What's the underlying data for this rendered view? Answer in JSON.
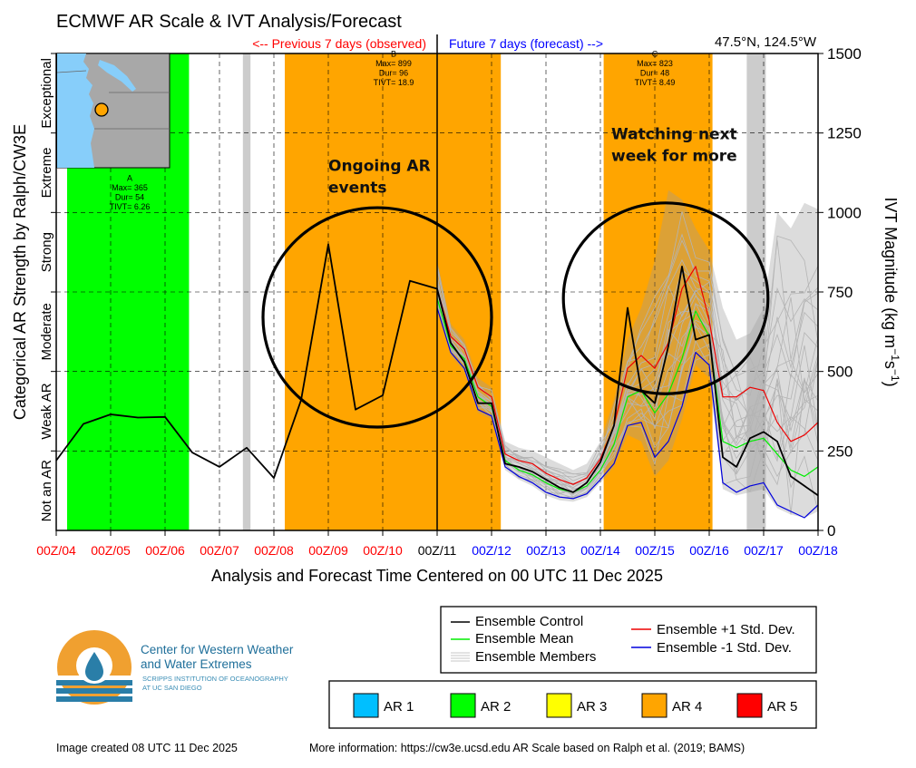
{
  "title": "ECMWF AR Scale & IVT Analysis/Forecast",
  "location": "47.5°N, 124.5°W",
  "previous_label": "<-- Previous 7 days (observed)",
  "future_label": "Future 7 days (forecast) -->",
  "colors": {
    "ar1": "#00bfff",
    "ar2": "#00ff00",
    "ar3": "#ffff00",
    "ar4": "#ffa500",
    "ar5": "#ff0000",
    "gray_band": "#cccccc",
    "control": "#000000",
    "mean": "#00ee00",
    "plus1": "#ee0000",
    "minus1": "#0000dd",
    "members": "#b4b4b4",
    "observed_tick": "#ff0000",
    "forecast_tick": "#0000ff",
    "analysis_tick": "#000000"
  },
  "chart_data": {
    "type": "line",
    "title": "ECMWF AR Scale & IVT Analysis/Forecast",
    "xlabel": "Analysis and Forecast Time Centered on 00 UTC 11 Dec 2025",
    "ylabel_right": "IVT Magnitude (kg m^-1 s^-1)",
    "ylabel_left": "Categorical AR Strength by Ralph/CW3E",
    "ylim": [
      0,
      1500
    ],
    "xlim_days": [
      0,
      14
    ],
    "analysis_day": 7,
    "x_ticks": [
      {
        "day": 0,
        "label": "00Z/04",
        "kind": "observed"
      },
      {
        "day": 1,
        "label": "00Z/05",
        "kind": "observed"
      },
      {
        "day": 2,
        "label": "00Z/06",
        "kind": "observed"
      },
      {
        "day": 3,
        "label": "00Z/07",
        "kind": "observed"
      },
      {
        "day": 4,
        "label": "00Z/08",
        "kind": "observed"
      },
      {
        "day": 5,
        "label": "00Z/09",
        "kind": "observed"
      },
      {
        "day": 6,
        "label": "00Z/10",
        "kind": "observed"
      },
      {
        "day": 7,
        "label": "00Z/11",
        "kind": "analysis"
      },
      {
        "day": 8,
        "label": "00Z/12",
        "kind": "forecast"
      },
      {
        "day": 9,
        "label": "00Z/13",
        "kind": "forecast"
      },
      {
        "day": 10,
        "label": "00Z/14",
        "kind": "forecast"
      },
      {
        "day": 11,
        "label": "00Z/15",
        "kind": "forecast"
      },
      {
        "day": 12,
        "label": "00Z/16",
        "kind": "forecast"
      },
      {
        "day": 13,
        "label": "00Z/17",
        "kind": "forecast"
      },
      {
        "day": 14,
        "label": "00Z/18",
        "kind": "forecast"
      }
    ],
    "y_ticks": [
      0,
      250,
      500,
      750,
      1000,
      1250,
      1500
    ],
    "categories": [
      {
        "label": "Not an AR",
        "from": 0,
        "to": 250
      },
      {
        "label": "Weak AR",
        "from": 250,
        "to": 500
      },
      {
        "label": "Moderate",
        "from": 500,
        "to": 750
      },
      {
        "label": "Strong",
        "from": 750,
        "to": 1000
      },
      {
        "label": "Extreme",
        "from": 1000,
        "to": 1250
      },
      {
        "label": "Exceptional",
        "from": 1250,
        "to": 1500
      }
    ],
    "ar_events": [
      {
        "id": "A",
        "level": "ar2",
        "start": 0.2,
        "end": 2.44,
        "max": "365",
        "dur": "54",
        "tivt": "6.26",
        "label_day": 1.35,
        "label_ivt": 1100
      },
      {
        "id": "B",
        "level": "ar4",
        "start": 4.2,
        "end": 8.17,
        "max": "899",
        "dur": "96",
        "tivt": "18.9",
        "label_day": 6.2,
        "label_ivt": 1490
      },
      {
        "id": "C",
        "level": "ar4",
        "start": 10.06,
        "end": 12.06,
        "max": "823",
        "dur": "48",
        "tivt": "8.49",
        "label_day": 11.0,
        "label_ivt": 1490
      }
    ],
    "gray_bands": [
      {
        "start": 3.43,
        "end": 3.57
      },
      {
        "start": 12.69,
        "end": 13.04
      }
    ],
    "series": [
      {
        "name": "Ensemble Control",
        "color_key": "control",
        "x": [
          0,
          0.5,
          1,
          1.5,
          2,
          2.5,
          3,
          3.5,
          4,
          4.5,
          5,
          5.5,
          6,
          6.5,
          7,
          7.25,
          7.5,
          7.75,
          8,
          8.25,
          8.5,
          8.75,
          9,
          9.25,
          9.5,
          9.75,
          10,
          10.25,
          10.5,
          10.75,
          11,
          11.25,
          11.5,
          11.75,
          12,
          12.25,
          12.5,
          12.75,
          13,
          13.25,
          13.5,
          13.75,
          14
        ],
        "values": [
          220,
          335,
          365,
          355,
          357,
          245,
          200,
          260,
          165,
          410,
          900,
          380,
          425,
          785,
          760,
          590,
          530,
          400,
          400,
          210,
          200,
          185,
          160,
          135,
          120,
          150,
          215,
          330,
          700,
          440,
          400,
          580,
          830,
          600,
          615,
          230,
          200,
          290,
          310,
          280,
          170,
          140,
          110
        ]
      },
      {
        "name": "Ensemble Mean",
        "color_key": "mean",
        "x": [
          7,
          7.25,
          7.5,
          7.75,
          8,
          8.25,
          8.5,
          8.75,
          9,
          9.25,
          9.5,
          9.75,
          10,
          10.25,
          10.5,
          10.75,
          11,
          11.25,
          11.5,
          11.75,
          12,
          12.25,
          12.5,
          12.75,
          13,
          13.25,
          13.5,
          13.75,
          14
        ],
        "values": [
          730,
          580,
          540,
          420,
          390,
          220,
          190,
          175,
          150,
          130,
          120,
          140,
          190,
          270,
          420,
          440,
          370,
          430,
          540,
          690,
          610,
          280,
          260,
          280,
          290,
          240,
          190,
          170,
          200
        ]
      },
      {
        "name": "Ensemble +1 Std. Dev.",
        "color_key": "plus1",
        "x": [
          7,
          7.25,
          7.5,
          7.75,
          8,
          8.25,
          8.5,
          8.75,
          9,
          9.25,
          9.5,
          9.75,
          10,
          10.25,
          10.5,
          10.75,
          11,
          11.25,
          11.5,
          11.75,
          12,
          12.25,
          12.5,
          12.75,
          13,
          13.25,
          13.5,
          13.75,
          14
        ],
        "values": [
          760,
          610,
          570,
          450,
          420,
          240,
          220,
          210,
          180,
          160,
          145,
          165,
          225,
          330,
          510,
          550,
          510,
          590,
          760,
          830,
          660,
          420,
          420,
          450,
          440,
          340,
          280,
          300,
          340
        ]
      },
      {
        "name": "Ensemble -1 Std. Dev.",
        "color_key": "minus1",
        "x": [
          7,
          7.25,
          7.5,
          7.75,
          8,
          8.25,
          8.5,
          8.75,
          9,
          9.25,
          9.5,
          9.75,
          10,
          10.25,
          10.5,
          10.75,
          11,
          11.25,
          11.5,
          11.75,
          12,
          12.25,
          12.5,
          12.75,
          13,
          13.25,
          13.5,
          13.75,
          14
        ],
        "values": [
          700,
          560,
          510,
          380,
          360,
          200,
          170,
          150,
          120,
          105,
          100,
          115,
          160,
          210,
          330,
          340,
          230,
          280,
          390,
          560,
          520,
          150,
          120,
          140,
          150,
          80,
          60,
          40,
          80
        ]
      }
    ],
    "ensemble_members": {
      "name": "Ensemble Members",
      "x": [
        7,
        7.25,
        7.5,
        7.75,
        8,
        8.25,
        8.5,
        8.75,
        9,
        9.25,
        9.5,
        9.75,
        10,
        10.25,
        10.5,
        10.75,
        11,
        11.25,
        11.5,
        11.75,
        12,
        12.25,
        12.5,
        12.75,
        13,
        13.25,
        13.5,
        13.75,
        14
      ],
      "lower": [
        700,
        550,
        500,
        370,
        350,
        190,
        160,
        140,
        110,
        95,
        90,
        105,
        150,
        200,
        300,
        280,
        170,
        220,
        350,
        520,
        480,
        130,
        110,
        120,
        130,
        70,
        50,
        40,
        60
      ],
      "upper": [
        850,
        650,
        600,
        480,
        450,
        280,
        260,
        250,
        230,
        210,
        190,
        210,
        280,
        410,
        600,
        700,
        850,
        1070,
        1040,
        950,
        880,
        700,
        600,
        620,
        700,
        1000,
        950,
        1030,
        1010
      ],
      "count": 20
    },
    "annotations": [
      {
        "text_lines": [
          "Ongoing AR",
          "events"
        ],
        "day": 5.0,
        "ivt": 1130
      },
      {
        "text_lines": [
          "Watching next",
          "week for more"
        ],
        "day": 10.2,
        "ivt": 1230
      }
    ],
    "ellipses": [
      {
        "center_day": 5.9,
        "center_ivt": 670,
        "rx_days": 2.1,
        "ry_ivt": 345
      },
      {
        "center_day": 11.2,
        "center_ivt": 730,
        "rx_days": 1.88,
        "ry_ivt": 300
      }
    ]
  },
  "legend_lines": {
    "control": "Ensemble Control",
    "mean": "Ensemble Mean",
    "members": "Ensemble Members",
    "plus1": "Ensemble +1 Std. Dev.",
    "minus1": "Ensemble -1 Std. Dev."
  },
  "legend_ar": [
    {
      "label": "AR 1",
      "color_key": "ar1"
    },
    {
      "label": "AR 2",
      "color_key": "ar2"
    },
    {
      "label": "AR 3",
      "color_key": "ar3"
    },
    {
      "label": "AR 4",
      "color_key": "ar4"
    },
    {
      "label": "AR 5",
      "color_key": "ar5"
    }
  ],
  "logo": {
    "line1": "Center for Western Weather",
    "line2": "and Water Extremes",
    "line3": "SCRIPPS INSTITUTION OF OCEANOGRAPHY",
    "line4": "AT UC SAN DIEGO"
  },
  "footer": {
    "created": "Image created 08 UTC 11 Dec 2025",
    "more_info": "More information: https://cw3e.ucsd.edu AR Scale based on Ralph et al. (2019; BAMS)"
  }
}
